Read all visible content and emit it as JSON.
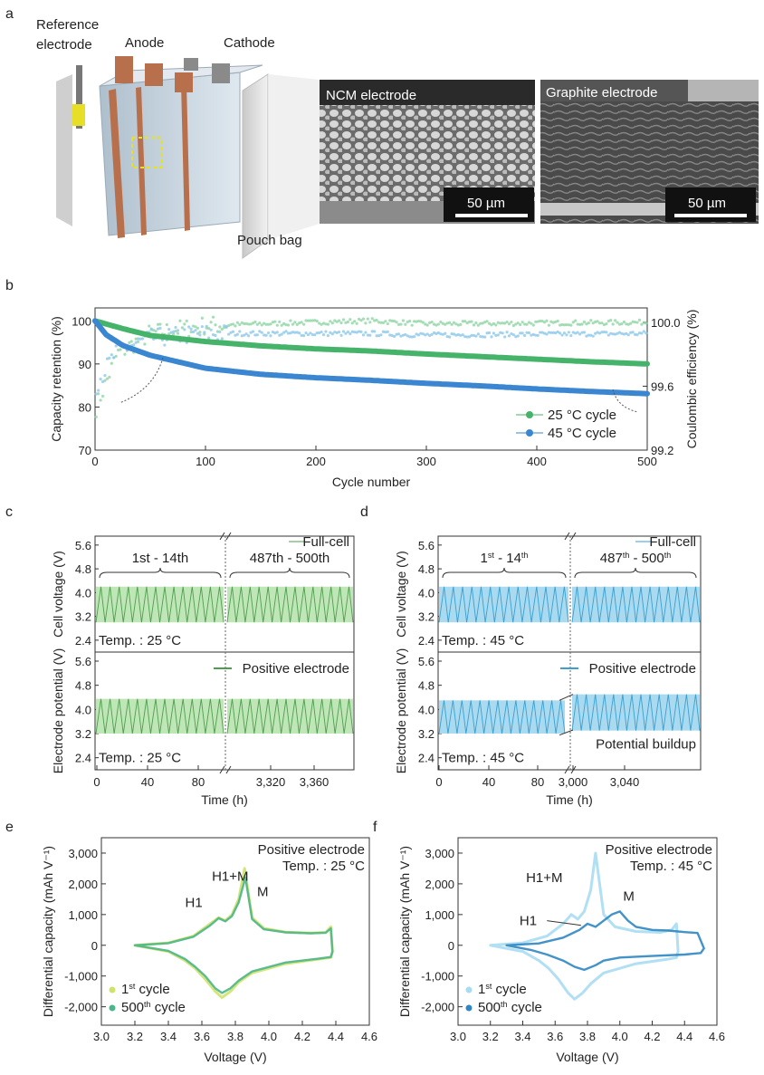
{
  "panels": {
    "a": "a",
    "b": "b",
    "c": "c",
    "d": "d",
    "e": "e",
    "f": "f"
  },
  "panel_a": {
    "reference_electrode_line1": "Reference",
    "reference_electrode_line2": "electrode",
    "anode": "Anode",
    "cathode": "Cathode",
    "pouch_bag": "Pouch bag",
    "sem_left_title": "NCM electrode",
    "sem_right_title": "Graphite electrode",
    "scale_bar": "50 µm",
    "colors": {
      "copper": "#b8704c",
      "tab_gray": "#8a8a8a",
      "ref_yellow": "#e8e020",
      "cell": "#c5d3df"
    }
  },
  "chart_data": [
    {
      "id": "b",
      "type": "scatter",
      "xlabel": "Cycle number",
      "ylabel": "Capacity retention (%)",
      "y2label": "Coulombic efficiency (%)",
      "xlim": [
        0,
        500
      ],
      "ylim": [
        70,
        103
      ],
      "y2lim": [
        99.2,
        100.09
      ],
      "xticks": [
        "0",
        "100",
        "200",
        "300",
        "400",
        "500"
      ],
      "yticks": [
        "70",
        "80",
        "90",
        "100"
      ],
      "y2ticks": [
        "99.2",
        "99.6",
        "100.0"
      ],
      "legend_position": "bottom-right",
      "series": [
        {
          "name": "25 °C cycle",
          "color": "#46b36a",
          "axis": "left",
          "x": [
            0,
            25,
            50,
            100,
            150,
            200,
            250,
            300,
            350,
            400,
            450,
            500
          ],
          "y": [
            100,
            98.2,
            96.6,
            95.2,
            94.2,
            93.5,
            93.0,
            92.3,
            91.7,
            91.1,
            90.5,
            90.0
          ]
        },
        {
          "name": "45 °C cycle",
          "color": "#3a86d0",
          "axis": "left",
          "x": [
            0,
            10,
            25,
            50,
            100,
            150,
            200,
            250,
            300,
            350,
            400,
            450,
            500
          ],
          "y": [
            100,
            96.8,
            94.3,
            92.0,
            89.0,
            87.6,
            86.8,
            86.2,
            85.5,
            84.9,
            84.2,
            83.6,
            83.1
          ]
        },
        {
          "name": "25 °C CE",
          "color": "#8fd6a4",
          "axis": "right",
          "x": [
            0,
            20,
            50,
            100,
            250,
            300,
            500
          ],
          "y": [
            99.45,
            99.8,
            99.93,
            99.98,
            100.01,
            99.99,
            100.0
          ]
        },
        {
          "name": "45 °C CE",
          "color": "#8cc8ea",
          "axis": "right",
          "x": [
            0,
            20,
            50,
            100,
            250,
            300,
            500
          ],
          "y": [
            99.6,
            99.82,
            99.9,
            99.93,
            99.93,
            99.92,
            99.93
          ]
        }
      ]
    },
    {
      "id": "c",
      "type": "line",
      "top_ylabel": "Cell voltage (V)",
      "bottom_ylabel": "Electrode potential (V)",
      "xlabel": "Time (h)",
      "yticks": [
        "2.4",
        "3.2",
        "4.0",
        "4.8",
        "5.6"
      ],
      "ylim": [
        2.0,
        5.9
      ],
      "xticks_left": [
        "0",
        "40",
        "80"
      ],
      "xticks_right": [
        "3,320",
        "3,360"
      ],
      "range_left": "1st - 14th",
      "range_right": "487th - 500th",
      "range_left_parts": [
        "1",
        "st",
        " - 14",
        "th"
      ],
      "range_right_parts": [
        "487",
        "th",
        " - 500",
        "th"
      ],
      "legend_top": "Full-cell",
      "legend_bottom": "Positive electrode",
      "temp": "Temp. : 25 °C",
      "color_line": "#4f9e4f",
      "color_fill": "#bfe6b6",
      "top_range_left": [
        3.0,
        4.2
      ],
      "top_range_right": [
        3.0,
        4.2
      ],
      "bottom_range_left": [
        3.2,
        4.35
      ],
      "bottom_range_right": [
        3.2,
        4.35
      ]
    },
    {
      "id": "d",
      "type": "line",
      "top_ylabel": "Cell voltage (V)",
      "bottom_ylabel": "Electrode potential (V)",
      "xlabel": "Time (h)",
      "yticks": [
        "2.4",
        "3.2",
        "4.0",
        "4.8",
        "5.6"
      ],
      "ylim": [
        2.0,
        5.9
      ],
      "xticks_left": [
        "0",
        "40",
        "80"
      ],
      "xticks_right": [
        "3,000",
        "3,040"
      ],
      "range_left_parts": [
        "1",
        "st",
        " - 14",
        "th"
      ],
      "range_right_parts": [
        "487",
        "th",
        " - 500",
        "th"
      ],
      "legend_top": "Full-cell",
      "legend_bottom": "Positive electrode",
      "annotation": "Potential buildup",
      "temp": "Temp. : 45 °C",
      "color_line": "#3b9fd0",
      "color_fill": "#a9daf0",
      "top_range_left": [
        3.0,
        4.2
      ],
      "top_range_right": [
        3.0,
        4.2
      ],
      "bottom_range_left": [
        3.2,
        4.3
      ],
      "bottom_range_right": [
        3.3,
        4.5
      ]
    },
    {
      "id": "e",
      "type": "line",
      "xlabel": "Voltage (V)",
      "ylabel": "Differential capacity (mAh V⁻¹)",
      "xlim": [
        3.0,
        4.6
      ],
      "ylim": [
        -2600,
        3500
      ],
      "xticks": [
        "3.0",
        "3.2",
        "3.4",
        "3.6",
        "3.8",
        "4.0",
        "4.2",
        "4.4",
        "4.6"
      ],
      "yticks": [
        "-2,000",
        "-1,000",
        "0",
        "1,000",
        "2,000",
        "3,000"
      ],
      "title": "Positive electrode",
      "temp": "Temp. : 25 °C",
      "annotations": [
        "H1",
        "H1+M",
        "M"
      ],
      "legend_position": "bottom-left",
      "series": [
        {
          "name": "1st cycle",
          "sup": "st",
          "base": "1",
          "rest": " cycle",
          "color": "#cde36a",
          "x": [
            3.2,
            3.4,
            3.55,
            3.65,
            3.7,
            3.74,
            3.78,
            3.82,
            3.855,
            3.9,
            3.97,
            4.1,
            4.25,
            4.34,
            4.37,
            4.38,
            4.37,
            4.3,
            4.1,
            3.9,
            3.82,
            3.77,
            3.72,
            3.68,
            3.62,
            3.56,
            3.5,
            3.4,
            3.2
          ],
          "y": [
            0,
            80,
            300,
            700,
            900,
            800,
            1000,
            1500,
            2500,
            900,
            550,
            430,
            400,
            420,
            600,
            -200,
            -400,
            -450,
            -600,
            -900,
            -1200,
            -1500,
            -1700,
            -1500,
            -1100,
            -750,
            -500,
            -200,
            0
          ]
        },
        {
          "name": "500th cycle",
          "sup": "th",
          "base": "500",
          "rest": " cycle",
          "color": "#4cb58a",
          "x": [
            3.2,
            3.4,
            3.55,
            3.65,
            3.7,
            3.74,
            3.78,
            3.82,
            3.86,
            3.9,
            3.97,
            4.1,
            4.25,
            4.34,
            4.37,
            4.38,
            4.37,
            4.3,
            4.1,
            3.9,
            3.82,
            3.77,
            3.72,
            3.68,
            3.62,
            3.56,
            3.5,
            3.4,
            3.2
          ],
          "y": [
            0,
            70,
            280,
            650,
            880,
            780,
            950,
            1400,
            2200,
            850,
            520,
            420,
            390,
            410,
            550,
            -200,
            -380,
            -430,
            -560,
            -850,
            -1150,
            -1400,
            -1550,
            -1400,
            -1000,
            -700,
            -450,
            -180,
            0
          ]
        }
      ]
    },
    {
      "id": "f",
      "type": "line",
      "xlabel": "Voltage (V)",
      "ylabel": "Differential capacity (mAh V⁻¹)",
      "xlim": [
        3.0,
        4.6
      ],
      "ylim": [
        -2600,
        3500
      ],
      "xticks": [
        "3.0",
        "3.2",
        "3.4",
        "3.6",
        "3.8",
        "4.0",
        "4.2",
        "4.4",
        "4.6"
      ],
      "yticks": [
        "-2,000",
        "-1,000",
        "0",
        "1,000",
        "2,000",
        "3,000"
      ],
      "title": "Positive electrode",
      "temp": "Temp. : 45 °C",
      "annotations": [
        "H1",
        "H1+M",
        "M"
      ],
      "legend_position": "bottom-left",
      "series": [
        {
          "name": "1st cycle",
          "sup": "st",
          "base": "1",
          "rest": " cycle",
          "color": "#a8dcf2",
          "x": [
            3.2,
            3.4,
            3.55,
            3.65,
            3.7,
            3.74,
            3.78,
            3.82,
            3.85,
            3.9,
            3.97,
            4.1,
            4.25,
            4.32,
            4.35,
            4.36,
            4.35,
            4.3,
            4.1,
            3.9,
            3.82,
            3.77,
            3.72,
            3.68,
            3.62,
            3.56,
            3.5,
            3.4,
            3.2
          ],
          "y": [
            0,
            80,
            300,
            700,
            1000,
            850,
            1100,
            1800,
            3000,
            1000,
            600,
            450,
            420,
            500,
            700,
            -200,
            -400,
            -450,
            -600,
            -900,
            -1250,
            -1550,
            -1750,
            -1550,
            -1100,
            -750,
            -500,
            -200,
            0
          ]
        },
        {
          "name": "500th cycle",
          "sup": "th",
          "base": "500",
          "rest": " cycle",
          "color": "#2f86c2",
          "x": [
            3.3,
            3.5,
            3.65,
            3.75,
            3.8,
            3.85,
            3.9,
            3.95,
            4.0,
            4.05,
            4.1,
            4.2,
            4.3,
            4.4,
            4.48,
            4.52,
            4.5,
            4.4,
            4.2,
            4.0,
            3.9,
            3.85,
            3.78,
            3.72,
            3.65,
            3.55,
            3.45,
            3.3
          ],
          "y": [
            0,
            60,
            250,
            500,
            700,
            600,
            800,
            1000,
            1100,
            800,
            600,
            500,
            480,
            430,
            400,
            -100,
            -250,
            -300,
            -350,
            -400,
            -500,
            -650,
            -800,
            -700,
            -500,
            -300,
            -150,
            0
          ]
        }
      ]
    }
  ]
}
